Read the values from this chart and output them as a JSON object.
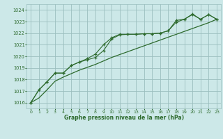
{
  "background_color": "#cce8e8",
  "grid_color": "#9bbfbf",
  "line_color": "#2d6a2d",
  "title": "Graphe pression niveau de la mer (hPa)",
  "xlim": [
    -0.5,
    23.5
  ],
  "ylim": [
    1015.5,
    1024.5
  ],
  "yticks": [
    1016,
    1017,
    1018,
    1019,
    1020,
    1021,
    1022,
    1023,
    1024
  ],
  "xticks": [
    0,
    1,
    2,
    3,
    4,
    5,
    6,
    7,
    8,
    9,
    10,
    11,
    12,
    13,
    14,
    15,
    16,
    17,
    18,
    19,
    20,
    21,
    22,
    23
  ],
  "series1": [
    1016.0,
    1017.1,
    1017.8,
    1018.55,
    1018.55,
    1019.2,
    1019.5,
    1019.8,
    1020.2,
    1021.0,
    1021.6,
    1021.9,
    1021.9,
    1021.9,
    1021.95,
    1021.95,
    1022.0,
    1022.2,
    1023.1,
    1023.2,
    1023.65,
    1023.2,
    1023.6,
    1023.2
  ],
  "series2": [
    1016.0,
    1017.1,
    1017.8,
    1018.55,
    1018.55,
    1019.2,
    1019.5,
    1019.7,
    1019.9,
    1020.5,
    1021.5,
    1021.85,
    1021.9,
    1021.9,
    1021.95,
    1021.95,
    1022.0,
    1022.2,
    1022.95,
    1023.2,
    1023.6,
    1023.2,
    1023.6,
    1023.2
  ],
  "series3": [
    1016.0,
    1016.4,
    1017.1,
    1017.85,
    1018.2,
    1018.5,
    1018.8,
    1019.05,
    1019.3,
    1019.6,
    1019.9,
    1020.15,
    1020.4,
    1020.65,
    1020.9,
    1021.15,
    1021.4,
    1021.65,
    1021.9,
    1022.15,
    1022.4,
    1022.65,
    1022.9,
    1023.2
  ]
}
